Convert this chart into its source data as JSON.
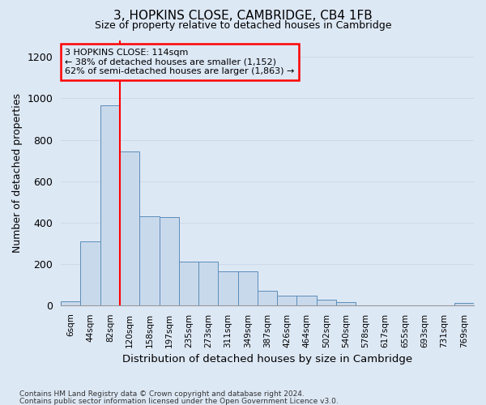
{
  "title": "3, HOPKINS CLOSE, CAMBRIDGE, CB4 1FB",
  "subtitle": "Size of property relative to detached houses in Cambridge",
  "xlabel": "Distribution of detached houses by size in Cambridge",
  "ylabel": "Number of detached properties",
  "footnote1": "Contains HM Land Registry data © Crown copyright and database right 2024.",
  "footnote2": "Contains public sector information licensed under the Open Government Licence v3.0.",
  "bin_labels": [
    "6sqm",
    "44sqm",
    "82sqm",
    "120sqm",
    "158sqm",
    "197sqm",
    "235sqm",
    "273sqm",
    "311sqm",
    "349sqm",
    "387sqm",
    "426sqm",
    "464sqm",
    "502sqm",
    "540sqm",
    "578sqm",
    "617sqm",
    "655sqm",
    "693sqm",
    "731sqm",
    "769sqm"
  ],
  "bar_values": [
    20,
    310,
    965,
    745,
    430,
    425,
    210,
    210,
    165,
    165,
    70,
    45,
    45,
    25,
    15,
    0,
    0,
    0,
    0,
    0,
    10
  ],
  "bar_color": "#c9d9ec",
  "bar_edge_color": "#5b8db8",
  "vline_index": 2,
  "vline_color": "red",
  "annotation_text": "3 HOPKINS CLOSE: 114sqm\n← 38% of detached houses are smaller (1,152)\n62% of semi-detached houses are larger (1,863) →",
  "annotation_box_color": "red",
  "ylim": [
    0,
    1280
  ],
  "yticks": [
    0,
    200,
    400,
    600,
    800,
    1000,
    1200
  ],
  "grid_color": "#d0d8e8",
  "background_color": "#dde8f5"
}
